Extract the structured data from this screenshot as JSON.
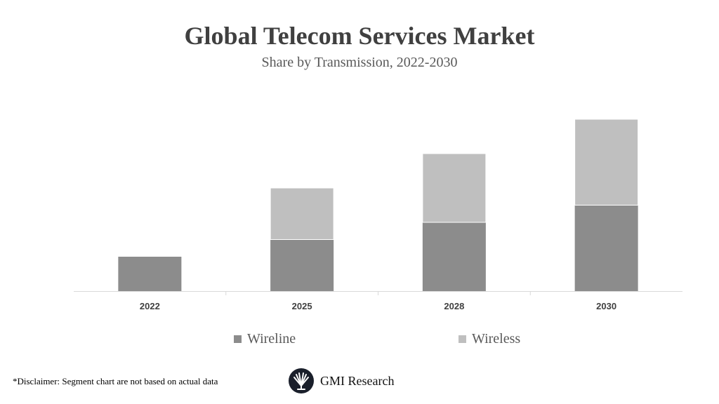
{
  "chart_data": {
    "type": "bar",
    "stacked": true,
    "title": "Global Telecom Services Market",
    "subtitle": "Share by Transmission, 2022-2030",
    "categories": [
      "2022",
      "2025",
      "2028",
      "2030"
    ],
    "series": [
      {
        "name": "Wireline",
        "values": [
          2,
          3,
          4,
          5
        ],
        "color": "#8c8c8c"
      },
      {
        "name": "Wireless",
        "values": [
          0,
          3,
          4,
          5
        ],
        "color": "#bfbfbf"
      }
    ],
    "ylim": [
      0,
      10
    ],
    "grid": false,
    "legend_position": "bottom",
    "xlabel": "",
    "ylabel": ""
  },
  "footer": {
    "disclaimer": "*Disclaimer:  Segment chart are not based on actual data",
    "logo_text": "GMI Research"
  }
}
